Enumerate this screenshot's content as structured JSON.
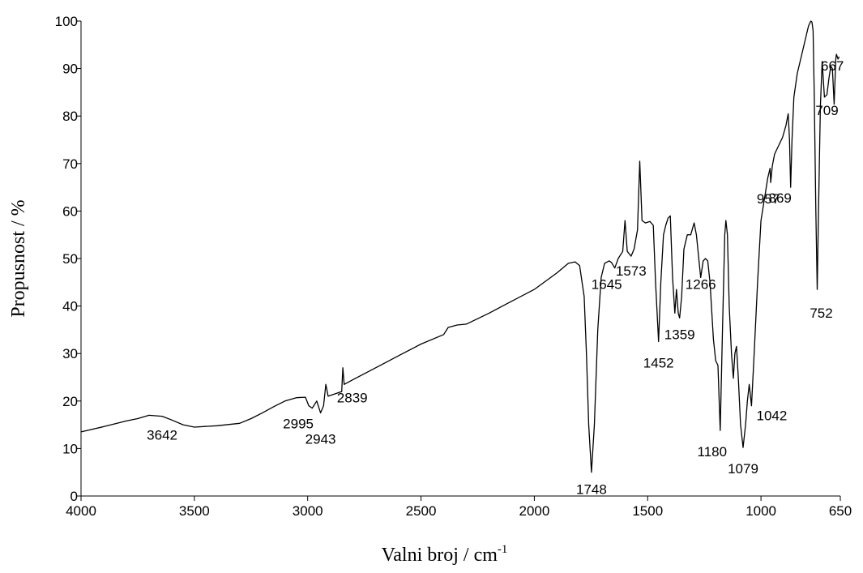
{
  "chart_data": {
    "type": "line",
    "title": "",
    "xlabel": "Valni broj / cm",
    "xlabel_sup": "-1",
    "ylabel": "Propusnost / %",
    "xlim": [
      4000,
      650
    ],
    "x_reversed": true,
    "ylim": [
      0,
      100
    ],
    "grid": false,
    "legend": "none",
    "line_color": "#000000",
    "x_ticks": [
      4000,
      3500,
      3000,
      2500,
      2000,
      1500,
      1000,
      650
    ],
    "y_ticks": [
      0,
      10,
      20,
      30,
      40,
      50,
      60,
      70,
      80,
      90,
      100
    ],
    "series": [
      {
        "name": "",
        "points": [
          [
            4000,
            13.5
          ],
          [
            3900,
            14.6
          ],
          [
            3800,
            15.8
          ],
          [
            3750,
            16.3
          ],
          [
            3700,
            17.0
          ],
          [
            3642,
            16.8
          ],
          [
            3600,
            16.0
          ],
          [
            3550,
            15.0
          ],
          [
            3500,
            14.5
          ],
          [
            3400,
            14.8
          ],
          [
            3300,
            15.3
          ],
          [
            3250,
            16.3
          ],
          [
            3200,
            17.5
          ],
          [
            3150,
            18.8
          ],
          [
            3100,
            20.0
          ],
          [
            3050,
            20.7
          ],
          [
            3010,
            20.8
          ],
          [
            2995,
            19.0
          ],
          [
            2980,
            18.5
          ],
          [
            2960,
            20.0
          ],
          [
            2943,
            17.5
          ],
          [
            2930,
            19.0
          ],
          [
            2920,
            23.5
          ],
          [
            2910,
            21.0
          ],
          [
            2880,
            21.5
          ],
          [
            2850,
            22.0
          ],
          [
            2845,
            27.0
          ],
          [
            2839,
            23.5
          ],
          [
            2800,
            24.5
          ],
          [
            2700,
            27.0
          ],
          [
            2600,
            29.5
          ],
          [
            2500,
            32.0
          ],
          [
            2400,
            34.0
          ],
          [
            2380,
            35.5
          ],
          [
            2340,
            36.0
          ],
          [
            2300,
            36.2
          ],
          [
            2200,
            38.5
          ],
          [
            2100,
            41.0
          ],
          [
            2000,
            43.5
          ],
          [
            1900,
            47.0
          ],
          [
            1850,
            49.0
          ],
          [
            1820,
            49.3
          ],
          [
            1800,
            48.5
          ],
          [
            1780,
            42.0
          ],
          [
            1770,
            30.0
          ],
          [
            1760,
            15.0
          ],
          [
            1748,
            5.0
          ],
          [
            1735,
            15.0
          ],
          [
            1720,
            35.0
          ],
          [
            1705,
            46.0
          ],
          [
            1690,
            49.0
          ],
          [
            1670,
            49.5
          ],
          [
            1660,
            49.2
          ],
          [
            1645,
            48.0
          ],
          [
            1630,
            50.0
          ],
          [
            1610,
            51.5
          ],
          [
            1600,
            58.0
          ],
          [
            1590,
            51.5
          ],
          [
            1573,
            50.5
          ],
          [
            1560,
            52.0
          ],
          [
            1545,
            56.0
          ],
          [
            1535,
            70.5
          ],
          [
            1525,
            58.0
          ],
          [
            1510,
            57.5
          ],
          [
            1490,
            57.8
          ],
          [
            1475,
            57.0
          ],
          [
            1465,
            45.0
          ],
          [
            1452,
            32.5
          ],
          [
            1442,
            45.0
          ],
          [
            1430,
            55.0
          ],
          [
            1420,
            57.0
          ],
          [
            1410,
            58.5
          ],
          [
            1400,
            59.0
          ],
          [
            1390,
            46.0
          ],
          [
            1380,
            38.5
          ],
          [
            1373,
            43.5
          ],
          [
            1365,
            38.5
          ],
          [
            1359,
            37.5
          ],
          [
            1350,
            42.0
          ],
          [
            1340,
            52.0
          ],
          [
            1325,
            55.0
          ],
          [
            1310,
            55.0
          ],
          [
            1295,
            57.5
          ],
          [
            1285,
            55.0
          ],
          [
            1266,
            46.0
          ],
          [
            1255,
            49.5
          ],
          [
            1245,
            50.0
          ],
          [
            1235,
            49.5
          ],
          [
            1225,
            45.0
          ],
          [
            1210,
            33.0
          ],
          [
            1200,
            28.5
          ],
          [
            1190,
            27.5
          ],
          [
            1180,
            13.8
          ],
          [
            1170,
            35.0
          ],
          [
            1160,
            55.0
          ],
          [
            1155,
            58.0
          ],
          [
            1148,
            55.0
          ],
          [
            1140,
            40.0
          ],
          [
            1130,
            30.0
          ],
          [
            1122,
            24.8
          ],
          [
            1115,
            30.0
          ],
          [
            1108,
            31.5
          ],
          [
            1100,
            25.0
          ],
          [
            1090,
            15.0
          ],
          [
            1079,
            10.2
          ],
          [
            1068,
            15.0
          ],
          [
            1060,
            20.0
          ],
          [
            1052,
            23.5
          ],
          [
            1042,
            19.0
          ],
          [
            1030,
            30.0
          ],
          [
            1015,
            45.0
          ],
          [
            1000,
            58.0
          ],
          [
            985,
            62.5
          ],
          [
            970,
            67.0
          ],
          [
            960,
            69.0
          ],
          [
            957,
            66.0
          ],
          [
            950,
            69.5
          ],
          [
            940,
            72.0
          ],
          [
            920,
            74.0
          ],
          [
            905,
            75.5
          ],
          [
            890,
            78.0
          ],
          [
            880,
            80.5
          ],
          [
            874,
            75.0
          ],
          [
            869,
            65.0
          ],
          [
            863,
            75.0
          ],
          [
            855,
            84.0
          ],
          [
            840,
            89.0
          ],
          [
            820,
            93.0
          ],
          [
            800,
            97.0
          ],
          [
            790,
            99.0
          ],
          [
            780,
            100.0
          ],
          [
            775,
            99.8
          ],
          [
            770,
            98.0
          ],
          [
            765,
            85.0
          ],
          [
            758,
            60.0
          ],
          [
            752,
            43.5
          ],
          [
            746,
            60.0
          ],
          [
            738,
            82.0
          ],
          [
            730,
            91.5
          ],
          [
            720,
            84.0
          ],
          [
            709,
            84.5
          ],
          [
            700,
            88.0
          ],
          [
            692,
            90.5
          ],
          [
            685,
            90.0
          ],
          [
            677,
            82.5
          ],
          [
            670,
            92.0
          ],
          [
            667,
            93.0
          ],
          [
            660,
            92.0
          ],
          [
            655,
            92.5
          ]
        ]
      }
    ],
    "annotations": [
      {
        "text": "3642",
        "x": 3642,
        "y": 17.0
      },
      {
        "text": "2995",
        "x": 2995,
        "y": 19.0
      },
      {
        "text": "2943",
        "x": 2943,
        "y": 17.5
      },
      {
        "text": "2839",
        "x": 2839,
        "y": 23.5
      },
      {
        "text": "1748",
        "x": 1748,
        "y": 5.0
      },
      {
        "text": "1645",
        "x": 1645,
        "y": 48.0
      },
      {
        "text": "1573",
        "x": 1573,
        "y": 50.5
      },
      {
        "text": "1452",
        "x": 1452,
        "y": 32.5
      },
      {
        "text": "1359",
        "x": 1359,
        "y": 37.5
      },
      {
        "text": "1266",
        "x": 1266,
        "y": 46.0
      },
      {
        "text": "1180",
        "x": 1180,
        "y": 13.8
      },
      {
        "text": "1079",
        "x": 1079,
        "y": 10.2
      },
      {
        "text": "1042",
        "x": 1042,
        "y": 19.0
      },
      {
        "text": "957",
        "x": 957,
        "y": 66.0
      },
      {
        "text": "869",
        "x": 869,
        "y": 65.0
      },
      {
        "text": "752",
        "x": 752,
        "y": 43.5
      },
      {
        "text": "709",
        "x": 709,
        "y": 84.5
      },
      {
        "text": "667",
        "x": 667,
        "y": 93.0
      }
    ]
  }
}
